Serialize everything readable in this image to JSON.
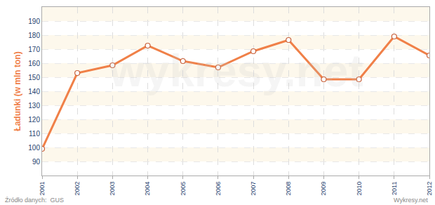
{
  "chart_data": {
    "type": "line",
    "y_label": "Ładunki (w mln ton)",
    "categories": [
      "2001",
      "2002",
      "2003",
      "2004",
      "2005",
      "2006",
      "2007",
      "2008",
      "2009",
      "2010",
      "2011",
      "2012"
    ],
    "values": [
      99,
      153,
      158.5,
      172.5,
      161.5,
      157,
      168.5,
      176.5,
      148.5,
      148.5,
      179,
      165.5
    ],
    "color": "#f08048",
    "marker": "circle",
    "line_style": "solid",
    "ylim": [
      80,
      200
    ],
    "yticks": [
      90,
      100,
      110,
      120,
      130,
      140,
      150,
      160,
      170,
      180,
      190
    ],
    "grid": true,
    "annotations": [
      {
        "text": "Źródło danych:  GUS",
        "position": "bottom-left"
      },
      {
        "text": "Wykresy.net",
        "position": "bottom-right"
      },
      {
        "text": "wykresy.net",
        "position": "watermark"
      }
    ]
  }
}
